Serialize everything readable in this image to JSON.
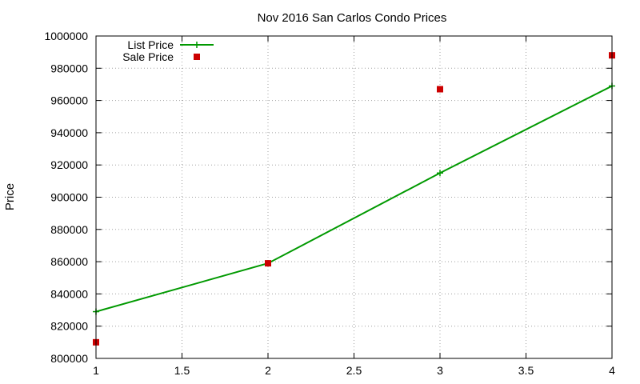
{
  "chart_data": {
    "type": "line",
    "title": "Nov 2016 San Carlos Condo Prices",
    "xlabel": "",
    "ylabel": "Price",
    "xlim": [
      1,
      4
    ],
    "ylim": [
      800000,
      1000000
    ],
    "x_ticks": [
      1,
      1.5,
      2,
      2.5,
      3,
      3.5,
      4
    ],
    "x_tick_labels": [
      "1",
      "1.5",
      "2",
      "2.5",
      "3",
      "3.5",
      "4"
    ],
    "y_ticks": [
      800000,
      820000,
      840000,
      860000,
      880000,
      900000,
      920000,
      940000,
      960000,
      980000,
      1000000
    ],
    "y_tick_labels": [
      "800000",
      "820000",
      "840000",
      "860000",
      "880000",
      "900000",
      "920000",
      "940000",
      "960000",
      "980000",
      "1000000"
    ],
    "grid": true,
    "legend_position": "top-left",
    "series": [
      {
        "name": "List Price",
        "style": "line-points",
        "marker": "plus",
        "color": "#009900",
        "x": [
          1,
          2,
          3,
          4
        ],
        "y": [
          829000,
          859000,
          915000,
          969000
        ]
      },
      {
        "name": "Sale Price",
        "style": "points",
        "marker": "square",
        "color": "#cc0000",
        "x": [
          1,
          2,
          3,
          4
        ],
        "y": [
          810000,
          859000,
          967000,
          988000
        ]
      }
    ]
  }
}
